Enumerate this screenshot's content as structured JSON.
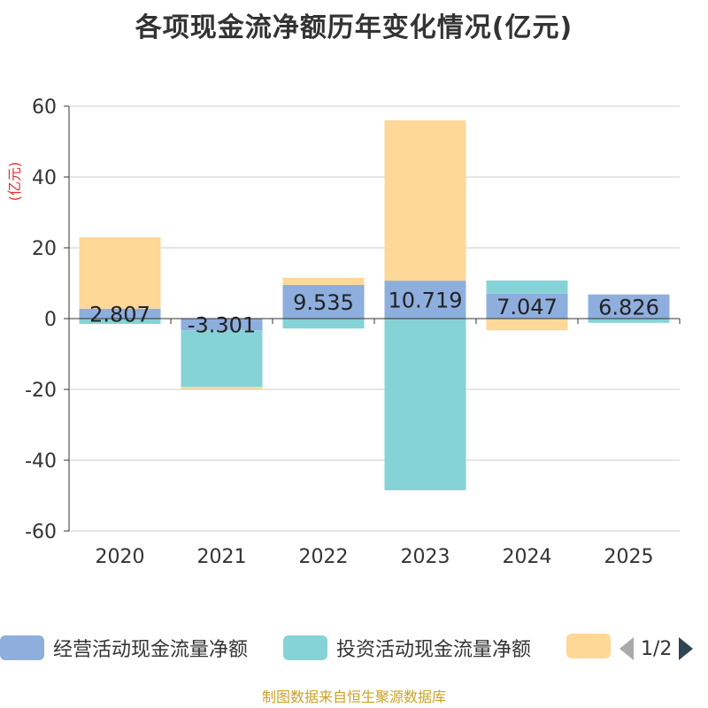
{
  "chart_data": {
    "type": "bar",
    "stacked": true,
    "title": "各项现金流净额历年变化情况(亿元)",
    "ylabel": "(亿元)",
    "ylim": [
      -60,
      60
    ],
    "yticks": [
      60,
      40,
      20,
      0,
      -20,
      -40,
      -60
    ],
    "categories": [
      "2020",
      "2021",
      "2022",
      "2023",
      "2024",
      "2025"
    ],
    "series": [
      {
        "name": "经营活动现金流量净额",
        "color": "#8eaede",
        "values": [
          2.807,
          -3.301,
          9.535,
          10.719,
          7.047,
          6.826
        ],
        "labels": [
          "2.807",
          "-3.301",
          "9.535",
          "10.719",
          "7.047",
          "6.826"
        ]
      },
      {
        "name": "投资活动现金流量净额",
        "color": "#86d3d7",
        "values": [
          -1.5,
          -16.0,
          -2.8,
          -48.5,
          3.7,
          -1.2
        ]
      },
      {
        "name": "",
        "color": "#fed897",
        "values": [
          20.2,
          -0.6,
          2.0,
          45.3,
          -3.3,
          0
        ]
      }
    ],
    "legend_position": "bottom",
    "grid": true
  },
  "legend": {
    "items": [
      {
        "label": "经营活动现金流量净额",
        "color": "#8eaede"
      },
      {
        "label": "投资活动现金流量净额",
        "color": "#86d3d7"
      },
      {
        "label": "",
        "color": "#fed897"
      }
    ],
    "page_text": "1/2"
  },
  "source": "制图数据来自恒生聚源数据库"
}
